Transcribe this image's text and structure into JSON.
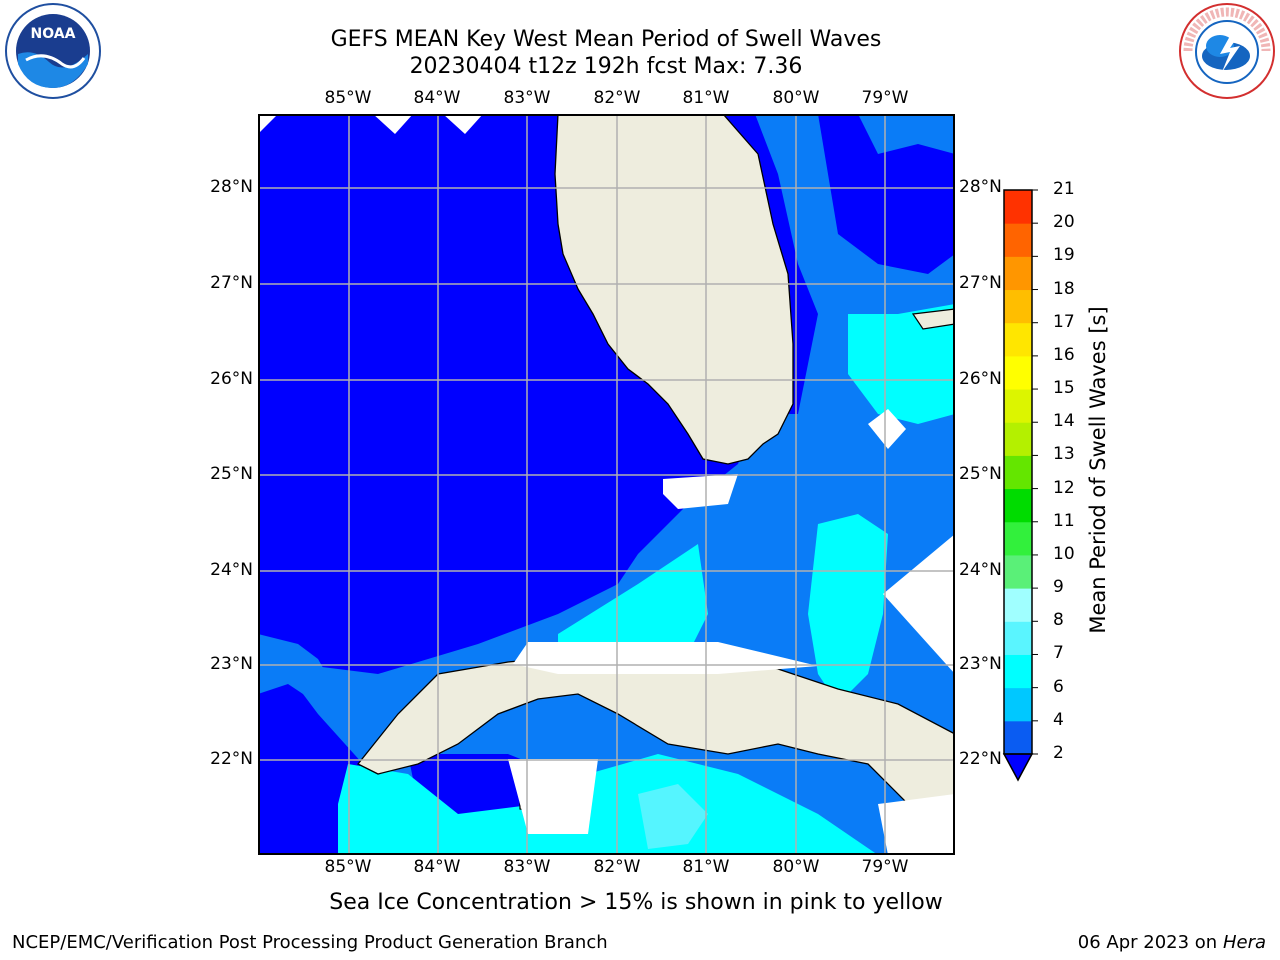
{
  "title_line1": "GEFS MEAN Key West Mean Period of Swell Waves",
  "title_line2": "20230404 t12z 192h fcst   Max: 7.36",
  "lon_labels": [
    "85°W",
    "84°W",
    "83°W",
    "82°W",
    "81°W",
    "80°W",
    "79°W"
  ],
  "lat_labels": [
    "28°N",
    "27°N",
    "26°N",
    "25°N",
    "24°N",
    "23°N",
    "22°N"
  ],
  "colorbar": {
    "label": "Mean Period of Swell Waves [s]",
    "ticks": [
      "2",
      "4",
      "6",
      "7",
      "8",
      "9",
      "10",
      "11",
      "12",
      "13",
      "14",
      "15",
      "16",
      "17",
      "18",
      "19",
      "20",
      "21"
    ],
    "colors": [
      "#0a5cf2",
      "#00c8ff",
      "#00ffff",
      "#5af5ff",
      "#a0ffff",
      "#5af078",
      "#32f03c",
      "#00dc00",
      "#64e600",
      "#b4f000",
      "#dcf500",
      "#ffff00",
      "#ffe600",
      "#ffbe00",
      "#ff9600",
      "#ff6400",
      "#ff3200",
      "#ff0000"
    ]
  },
  "map_colors": {
    "ocean_deep": "#0000ff",
    "ocean_mid": "#0a7cf7",
    "ocean_light": "#00ffff",
    "ocean_lighter": "#55f5ff",
    "land": "#eeedde"
  },
  "footer_note": "Sea Ice Concentration > 15% is shown in pink to yellow",
  "footer_left": "NCEP/EMC/Verification Post Processing Product Generation Branch",
  "footer_right_date": "06 Apr 2023 on ",
  "footer_right_host": "Hera",
  "logo_left": "NOAA",
  "logo_right": "NATIONAL WEATHER SERVICE"
}
